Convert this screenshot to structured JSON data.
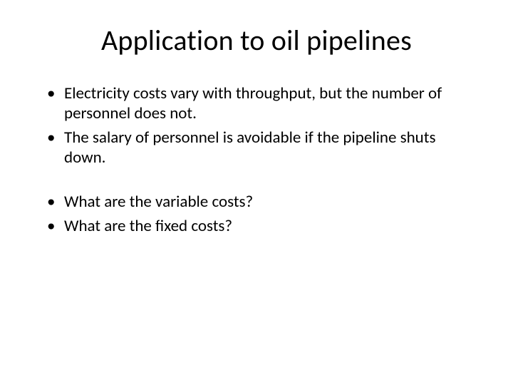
{
  "slide": {
    "title": "Application to oil pipelines",
    "bullets_group1": [
      "Electricity costs vary with throughput, but the number of personnel does not.",
      "The salary of personnel is avoidable if the pipeline shuts down."
    ],
    "bullets_group2": [
      "What are the variable costs?",
      "What are the fixed costs?"
    ],
    "title_fontsize": 40,
    "body_fontsize": 23,
    "background_color": "#ffffff",
    "text_color": "#000000"
  }
}
